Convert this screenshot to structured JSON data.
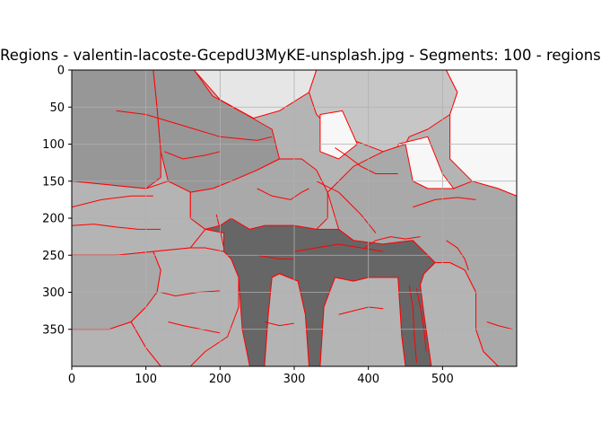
{
  "chart_data": {
    "type": "image",
    "title": "Regions - valentin-lacoste-GcepdU3MyKE-unsplash.jpg - Segments: 100 - regions",
    "xlabel": "",
    "ylabel": "",
    "xlim": [
      0,
      600
    ],
    "ylim": [
      400,
      0
    ],
    "xticks": [
      0,
      100,
      200,
      300,
      400,
      500
    ],
    "yticks": [
      0,
      50,
      100,
      150,
      200,
      250,
      300,
      350
    ],
    "grid": true,
    "boundary_color": "#ff0000",
    "shades": {
      "dark": "#666666",
      "mid_dark": "#979797",
      "mid": "#a9a9a9",
      "light": "#b4b4b4",
      "lighter": "#c6c6c6",
      "pale": "#e6e6e6",
      "white": "#f7f7f7"
    },
    "regions": [
      {
        "shade": "mid_dark",
        "pts": [
          [
            0,
            0
          ],
          [
            110,
            0
          ],
          [
            115,
            50
          ],
          [
            120,
            110
          ],
          [
            120,
            145
          ],
          [
            100,
            160
          ],
          [
            0,
            150
          ]
        ]
      },
      {
        "shade": "mid_dark",
        "pts": [
          [
            110,
            0
          ],
          [
            165,
            0
          ],
          [
            190,
            35
          ],
          [
            235,
            60
          ],
          [
            270,
            80
          ],
          [
            280,
            120
          ],
          [
            250,
            135
          ],
          [
            215,
            150
          ],
          [
            190,
            160
          ],
          [
            160,
            165
          ],
          [
            130,
            150
          ],
          [
            120,
            110
          ],
          [
            115,
            50
          ]
        ]
      },
      {
        "shade": "pale",
        "pts": [
          [
            165,
            0
          ],
          [
            330,
            0
          ],
          [
            320,
            30
          ],
          [
            280,
            55
          ],
          [
            245,
            65
          ],
          [
            200,
            40
          ]
        ]
      },
      {
        "shade": "lighter",
        "pts": [
          [
            330,
            0
          ],
          [
            505,
            0
          ],
          [
            520,
            30
          ],
          [
            510,
            60
          ],
          [
            480,
            80
          ],
          [
            455,
            90
          ],
          [
            450,
            100
          ],
          [
            420,
            110
          ],
          [
            380,
            95
          ],
          [
            350,
            80
          ],
          [
            330,
            60
          ],
          [
            320,
            30
          ]
        ]
      },
      {
        "shade": "white",
        "pts": [
          [
            505,
            0
          ],
          [
            600,
            0
          ],
          [
            600,
            170
          ],
          [
            575,
            160
          ],
          [
            540,
            150
          ],
          [
            510,
            120
          ],
          [
            510,
            60
          ],
          [
            520,
            30
          ]
        ]
      },
      {
        "shade": "white",
        "pts": [
          [
            440,
            100
          ],
          [
            480,
            90
          ],
          [
            500,
            140
          ],
          [
            515,
            160
          ],
          [
            480,
            160
          ],
          [
            460,
            150
          ],
          [
            445,
            130
          ]
        ]
      },
      {
        "shade": "white",
        "pts": [
          [
            335,
            60
          ],
          [
            365,
            55
          ],
          [
            385,
            100
          ],
          [
            360,
            120
          ],
          [
            335,
            110
          ]
        ]
      },
      {
        "shade": "light",
        "pts": [
          [
            0,
            150
          ],
          [
            100,
            160
          ],
          [
            130,
            150
          ],
          [
            160,
            165
          ],
          [
            160,
            200
          ],
          [
            180,
            215
          ],
          [
            160,
            240
          ],
          [
            110,
            245
          ],
          [
            60,
            250
          ],
          [
            0,
            250
          ]
        ]
      },
      {
        "shade": "mid",
        "pts": [
          [
            160,
            165
          ],
          [
            190,
            160
          ],
          [
            215,
            150
          ],
          [
            250,
            135
          ],
          [
            280,
            120
          ],
          [
            310,
            120
          ],
          [
            330,
            135
          ],
          [
            345,
            165
          ],
          [
            345,
            200
          ],
          [
            330,
            215
          ],
          [
            300,
            210
          ],
          [
            260,
            210
          ],
          [
            240,
            215
          ],
          [
            200,
            210
          ],
          [
            180,
            215
          ],
          [
            160,
            200
          ]
        ]
      },
      {
        "shade": "mid",
        "pts": [
          [
            345,
            165
          ],
          [
            380,
            130
          ],
          [
            420,
            110
          ],
          [
            450,
            100
          ],
          [
            460,
            150
          ],
          [
            480,
            160
          ],
          [
            515,
            160
          ],
          [
            540,
            150
          ],
          [
            575,
            160
          ],
          [
            600,
            170
          ],
          [
            600,
            400
          ],
          [
            575,
            400
          ],
          [
            555,
            380
          ],
          [
            545,
            350
          ],
          [
            545,
            300
          ],
          [
            530,
            270
          ],
          [
            510,
            260
          ],
          [
            490,
            260
          ],
          [
            470,
            240
          ],
          [
            460,
            230
          ],
          [
            420,
            235
          ],
          [
            400,
            240
          ],
          [
            380,
            230
          ],
          [
            360,
            215
          ]
        ]
      },
      {
        "shade": "dark",
        "pts": [
          [
            180,
            215
          ],
          [
            200,
            210
          ],
          [
            215,
            200
          ],
          [
            240,
            215
          ],
          [
            260,
            210
          ],
          [
            300,
            210
          ],
          [
            330,
            215
          ],
          [
            360,
            215
          ],
          [
            380,
            230
          ],
          [
            420,
            235
          ],
          [
            460,
            230
          ],
          [
            470,
            240
          ],
          [
            490,
            260
          ],
          [
            475,
            275
          ],
          [
            470,
            290
          ],
          [
            475,
            330
          ],
          [
            485,
            400
          ],
          [
            450,
            400
          ],
          [
            445,
            360
          ],
          [
            440,
            280
          ],
          [
            400,
            280
          ],
          [
            380,
            285
          ],
          [
            355,
            280
          ],
          [
            340,
            320
          ],
          [
            335,
            400
          ],
          [
            320,
            400
          ],
          [
            315,
            330
          ],
          [
            305,
            285
          ],
          [
            280,
            275
          ],
          [
            270,
            280
          ],
          [
            265,
            330
          ],
          [
            260,
            400
          ],
          [
            240,
            400
          ],
          [
            230,
            350
          ],
          [
            225,
            280
          ],
          [
            215,
            255
          ],
          [
            205,
            245
          ],
          [
            205,
            220
          ]
        ]
      },
      {
        "shade": "mid",
        "pts": [
          [
            0,
            250
          ],
          [
            60,
            250
          ],
          [
            110,
            245
          ],
          [
            120,
            270
          ],
          [
            115,
            300
          ],
          [
            100,
            320
          ],
          [
            80,
            340
          ],
          [
            50,
            350
          ],
          [
            0,
            350
          ]
        ]
      },
      {
        "shade": "light",
        "pts": [
          [
            110,
            245
          ],
          [
            160,
            240
          ],
          [
            180,
            240
          ],
          [
            205,
            245
          ],
          [
            215,
            255
          ],
          [
            225,
            280
          ],
          [
            225,
            320
          ],
          [
            210,
            360
          ],
          [
            180,
            380
          ],
          [
            160,
            400
          ],
          [
            120,
            400
          ],
          [
            100,
            375
          ],
          [
            80,
            340
          ],
          [
            100,
            320
          ],
          [
            115,
            300
          ],
          [
            120,
            270
          ]
        ]
      },
      {
        "shade": "light",
        "pts": [
          [
            270,
            280
          ],
          [
            280,
            275
          ],
          [
            305,
            285
          ],
          [
            315,
            330
          ],
          [
            320,
            400
          ],
          [
            260,
            400
          ],
          [
            265,
            330
          ]
        ]
      },
      {
        "shade": "light",
        "pts": [
          [
            355,
            280
          ],
          [
            380,
            285
          ],
          [
            400,
            280
          ],
          [
            440,
            280
          ],
          [
            445,
            360
          ],
          [
            450,
            400
          ],
          [
            335,
            400
          ],
          [
            340,
            320
          ]
        ]
      },
      {
        "shade": "light",
        "pts": [
          [
            490,
            260
          ],
          [
            510,
            260
          ],
          [
            530,
            270
          ],
          [
            545,
            300
          ],
          [
            545,
            350
          ],
          [
            555,
            380
          ],
          [
            575,
            400
          ],
          [
            485,
            400
          ],
          [
            475,
            330
          ],
          [
            470,
            290
          ],
          [
            475,
            275
          ]
        ]
      },
      {
        "shade": "light",
        "pts": [
          [
            0,
            350
          ],
          [
            50,
            350
          ],
          [
            80,
            340
          ],
          [
            100,
            375
          ],
          [
            120,
            400
          ],
          [
            0,
            400
          ]
        ]
      }
    ],
    "boundaries": [
      [
        [
          60,
          55
        ],
        [
          100,
          60
        ],
        [
          150,
          75
        ],
        [
          200,
          90
        ],
        [
          250,
          95
        ],
        [
          270,
          90
        ]
      ],
      [
        [
          125,
          110
        ],
        [
          150,
          120
        ],
        [
          180,
          115
        ],
        [
          200,
          110
        ]
      ],
      [
        [
          0,
          185
        ],
        [
          40,
          175
        ],
        [
          80,
          170
        ],
        [
          110,
          170
        ]
      ],
      [
        [
          0,
          210
        ],
        [
          30,
          208
        ],
        [
          60,
          212
        ],
        [
          90,
          215
        ],
        [
          120,
          215
        ]
      ],
      [
        [
          250,
          160
        ],
        [
          270,
          170
        ],
        [
          295,
          175
        ],
        [
          310,
          165
        ],
        [
          320,
          160
        ]
      ],
      [
        [
          395,
          240
        ],
        [
          410,
          230
        ],
        [
          430,
          225
        ],
        [
          450,
          228
        ],
        [
          470,
          225
        ]
      ],
      [
        [
          330,
          150
        ],
        [
          360,
          165
        ],
        [
          390,
          195
        ],
        [
          410,
          220
        ]
      ],
      [
        [
          460,
          185
        ],
        [
          490,
          175
        ],
        [
          520,
          172
        ],
        [
          545,
          175
        ]
      ],
      [
        [
          505,
          230
        ],
        [
          520,
          240
        ],
        [
          530,
          255
        ],
        [
          535,
          270
        ]
      ],
      [
        [
          120,
          300
        ],
        [
          140,
          305
        ],
        [
          170,
          300
        ],
        [
          200,
          298
        ]
      ],
      [
        [
          130,
          340
        ],
        [
          150,
          345
        ],
        [
          175,
          350
        ],
        [
          200,
          355
        ]
      ],
      [
        [
          360,
          330
        ],
        [
          380,
          325
        ],
        [
          400,
          320
        ],
        [
          420,
          322
        ]
      ],
      [
        [
          260,
          340
        ],
        [
          280,
          345
        ],
        [
          300,
          342
        ]
      ],
      [
        [
          300,
          245
        ],
        [
          330,
          240
        ],
        [
          360,
          235
        ],
        [
          390,
          240
        ],
        [
          420,
          245
        ]
      ],
      [
        [
          250,
          250
        ],
        [
          280,
          255
        ],
        [
          300,
          255
        ]
      ],
      [
        [
          355,
          105
        ],
        [
          370,
          115
        ],
        [
          390,
          130
        ],
        [
          410,
          140
        ],
        [
          440,
          140
        ]
      ],
      [
        [
          465,
          295
        ],
        [
          470,
          320
        ],
        [
          475,
          350
        ],
        [
          478,
          380
        ]
      ],
      [
        [
          455,
          290
        ],
        [
          460,
          320
        ],
        [
          462,
          360
        ],
        [
          465,
          395
        ]
      ],
      [
        [
          195,
          195
        ],
        [
          200,
          215
        ],
        [
          205,
          240
        ]
      ],
      [
        [
          560,
          340
        ],
        [
          575,
          345
        ],
        [
          595,
          350
        ]
      ]
    ]
  }
}
